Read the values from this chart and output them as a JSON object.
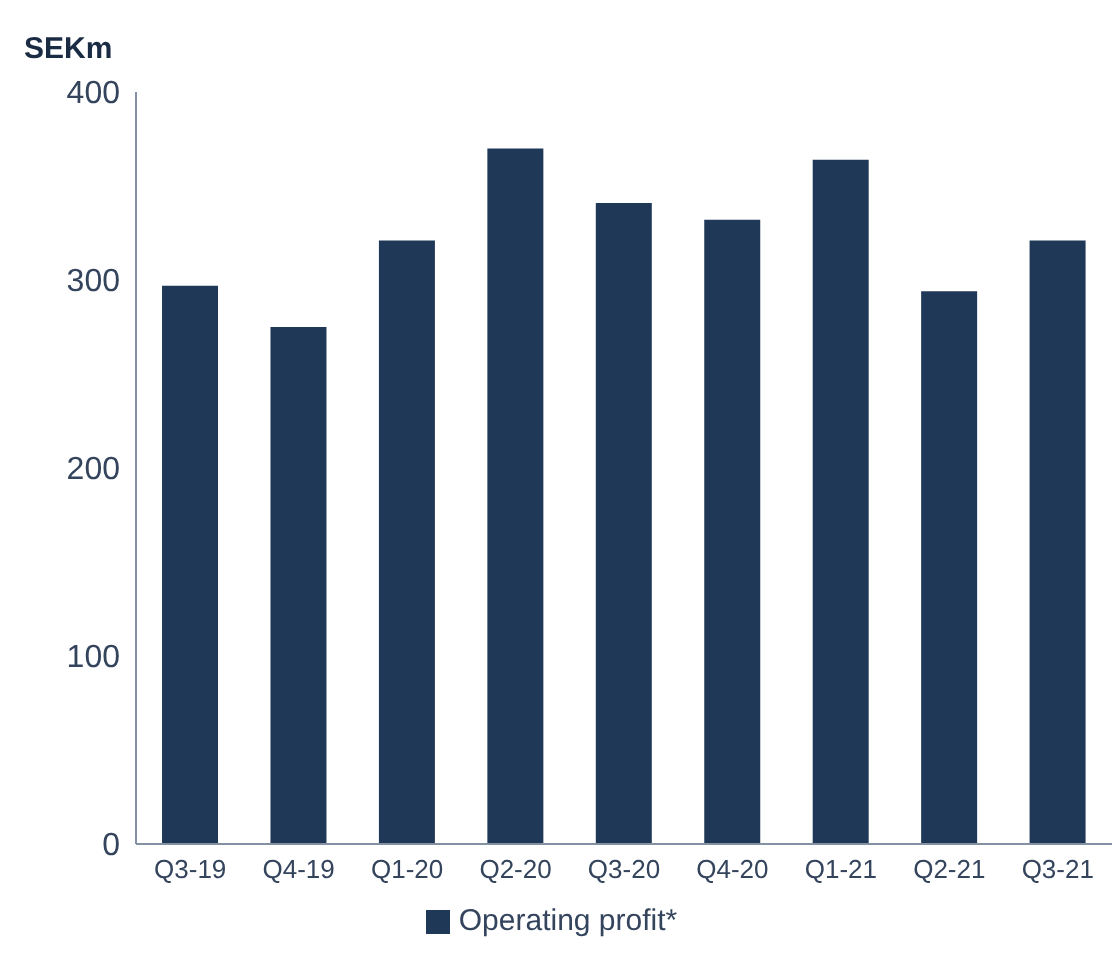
{
  "chart_data": {
    "type": "bar",
    "ylabel": "SEKm",
    "categories": [
      "Q3-19",
      "Q4-19",
      "Q1-20",
      "Q2-20",
      "Q3-20",
      "Q4-20",
      "Q1-21",
      "Q2-21",
      "Q3-21"
    ],
    "series": [
      {
        "name": "Operating profit*",
        "color": "#203857",
        "values": [
          297,
          275,
          321,
          370,
          341,
          332,
          364,
          294,
          321
        ]
      }
    ],
    "ylim": [
      0,
      400
    ],
    "yticks": [
      0,
      100,
      200,
      300,
      400
    ],
    "grid": false,
    "legend": "bottom"
  }
}
